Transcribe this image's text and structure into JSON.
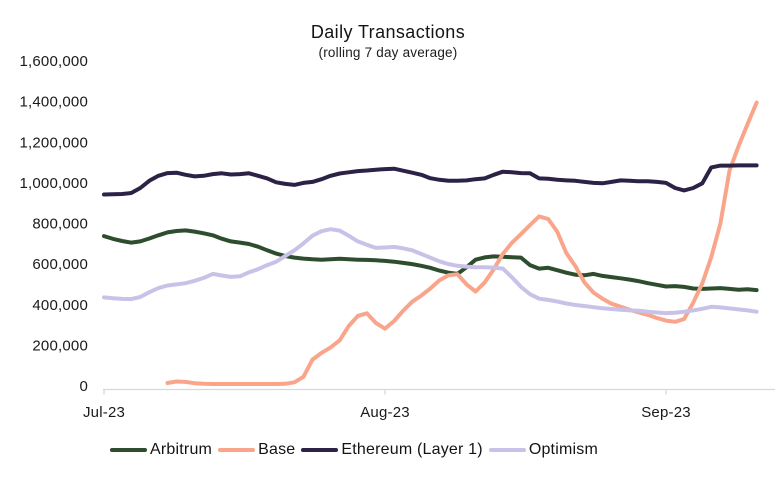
{
  "chart": {
    "title": "Daily Transactions",
    "subtitle": "(rolling 7 day average)"
  },
  "chart_data": {
    "type": "line",
    "title": "Daily Transactions",
    "subtitle": "(rolling 7 day average)",
    "grid": false,
    "legend_position": "bottom",
    "x_unit": "date",
    "x_start": "2023-07-01",
    "x_end": "2023-09-11",
    "x_step": "1 day",
    "n_points": 73,
    "ylim": [
      0,
      1600000
    ],
    "y_ticks": {
      "values": [
        0,
        200000,
        400000,
        600000,
        800000,
        1000000,
        1200000,
        1400000,
        1600000
      ],
      "labels": [
        "0",
        "200,000",
        "400,000",
        "600,000",
        "800,000",
        "1,000,000",
        "1,200,000",
        "1,400,000",
        "1,600,000"
      ]
    },
    "x_ticks": {
      "day_index": [
        0,
        31,
        62
      ],
      "labels": [
        "Jul-23",
        "Aug-23",
        "Sep-23"
      ]
    },
    "axis_color": "#d9d9d9",
    "text_color": "#1a1a1a",
    "series": [
      {
        "name": "Arbitrum",
        "color": "#2d4d2e",
        "values": [
          738000,
          724000,
          714000,
          706000,
          712000,
          726000,
          742000,
          756000,
          763000,
          766000,
          760000,
          752000,
          742000,
          725000,
          712000,
          706000,
          699000,
          686000,
          668000,
          652000,
          640000,
          632000,
          627000,
          624000,
          622000,
          624000,
          626000,
          624000,
          622000,
          621000,
          619000,
          616000,
          612000,
          606000,
          600000,
          592000,
          582000,
          568000,
          558000,
          552000,
          585000,
          622000,
          633000,
          638000,
          636000,
          634000,
          632000,
          595000,
          578000,
          582000,
          570000,
          558000,
          548000,
          545000,
          552000,
          542000,
          536000,
          530000,
          524000,
          516000,
          506000,
          498000,
          490000,
          492000,
          488000,
          480000,
          478000,
          480000,
          482000,
          478000,
          474000,
          476000,
          472000
        ]
      },
      {
        "name": "Base",
        "color": "#f9a58b",
        "values": [
          null,
          null,
          null,
          null,
          null,
          null,
          null,
          15000,
          22000,
          20000,
          14000,
          11000,
          10000,
          10000,
          10000,
          10000,
          10000,
          10000,
          10000,
          10000,
          11000,
          18000,
          45000,
          130000,
          163000,
          190000,
          225000,
          295000,
          345000,
          358000,
          310000,
          282000,
          320000,
          370000,
          415000,
          445000,
          480000,
          520000,
          545000,
          550000,
          500000,
          465000,
          510000,
          575000,
          650000,
          705000,
          748000,
          792000,
          835000,
          822000,
          760000,
          655000,
          590000,
          510000,
          460000,
          430000,
          405000,
          390000,
          375000,
          362000,
          350000,
          335000,
          322000,
          316000,
          330000,
          410000,
          505000,
          635000,
          800000,
          1060000,
          1180000,
          1290000,
          1395000
        ]
      },
      {
        "name": "Ethereum (Layer 1)",
        "color": "#2b2245",
        "values": [
          943000,
          944000,
          945000,
          950000,
          975000,
          1010000,
          1035000,
          1048000,
          1050000,
          1040000,
          1032000,
          1035000,
          1043000,
          1047000,
          1041000,
          1043000,
          1047000,
          1035000,
          1022000,
          1003000,
          995000,
          990000,
          1000000,
          1005000,
          1018000,
          1035000,
          1046000,
          1052000,
          1058000,
          1061000,
          1065000,
          1068000,
          1070000,
          1060000,
          1050000,
          1040000,
          1023000,
          1015000,
          1010000,
          1010000,
          1012000,
          1018000,
          1022000,
          1040000,
          1055000,
          1052000,
          1048000,
          1047000,
          1022000,
          1020000,
          1015000,
          1012000,
          1010000,
          1005000,
          1000000,
          998000,
          1005000,
          1012000,
          1010000,
          1008000,
          1008000,
          1005000,
          1000000,
          975000,
          963000,
          975000,
          998000,
          1076000,
          1085000,
          1085000,
          1086000,
          1086000,
          1086000
        ]
      },
      {
        "name": "Optimism",
        "color": "#c9c2e8",
        "values": [
          436000,
          432000,
          429000,
          428000,
          438000,
          462000,
          482000,
          495000,
          500000,
          506000,
          518000,
          532000,
          552000,
          544000,
          537000,
          540000,
          560000,
          575000,
          595000,
          612000,
          640000,
          668000,
          702000,
          740000,
          762000,
          772000,
          765000,
          740000,
          712000,
          695000,
          680000,
          682000,
          685000,
          678000,
          668000,
          650000,
          632000,
          614000,
          600000,
          592000,
          588000,
          585000,
          585000,
          583000,
          578000,
          535000,
          488000,
          452000,
          430000,
          424000,
          416000,
          406000,
          399000,
          394000,
          388000,
          383000,
          379000,
          375000,
          372000,
          370000,
          366000,
          362000,
          359000,
          361000,
          366000,
          372000,
          380000,
          390000,
          387000,
          382000,
          377000,
          372000,
          366000
        ]
      }
    ]
  }
}
